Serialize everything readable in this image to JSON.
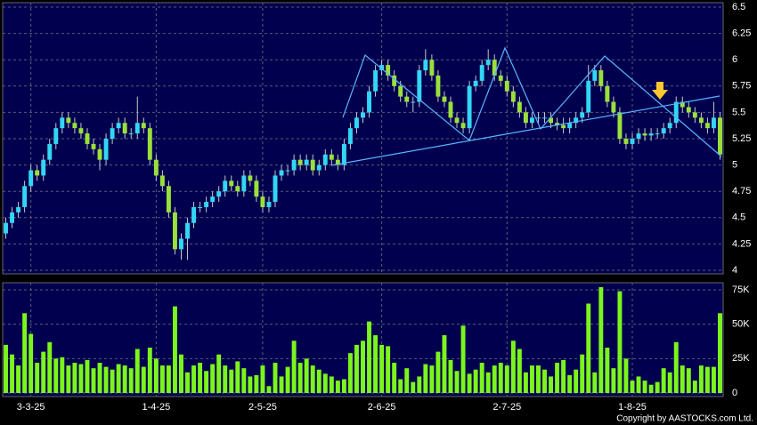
{
  "chart_data": {
    "type": "candlestick",
    "categories": [
      null,
      null,
      null,
      null,
      "3-3-25",
      null,
      null,
      null,
      null,
      null,
      null,
      null,
      null,
      null,
      null,
      null,
      null,
      null,
      null,
      null,
      null,
      null,
      null,
      null,
      "1-4-25",
      null,
      null,
      null,
      null,
      null,
      null,
      null,
      null,
      null,
      null,
      null,
      null,
      null,
      null,
      null,
      null,
      "2-5-25",
      null,
      null,
      null,
      null,
      null,
      null,
      null,
      null,
      null,
      null,
      null,
      null,
      null,
      null,
      null,
      null,
      null,
      null,
      "2-6-25",
      null,
      null,
      null,
      null,
      null,
      null,
      null,
      null,
      null,
      null,
      null,
      null,
      null,
      null,
      null,
      null,
      null,
      null,
      null,
      "2-7-25",
      null,
      null,
      null,
      null,
      null,
      null,
      null,
      null,
      null,
      null,
      null,
      null,
      null,
      null,
      null,
      null,
      null,
      null,
      null,
      "1-8-25",
      null,
      null,
      null,
      null,
      null,
      null,
      null,
      null,
      null,
      null,
      null,
      null,
      null,
      null
    ],
    "open": [
      4.35,
      4.45,
      4.55,
      4.6,
      4.8,
      4.95,
      4.9,
      5.05,
      5.2,
      5.35,
      5.45,
      5.4,
      5.35,
      5.3,
      5.2,
      5.15,
      5.05,
      5.25,
      5.35,
      5.4,
      5.3,
      5.3,
      5.4,
      5.35,
      5.05,
      4.9,
      4.8,
      4.55,
      4.2,
      4.3,
      4.45,
      4.6,
      4.6,
      4.65,
      4.7,
      4.75,
      4.85,
      4.8,
      4.75,
      4.9,
      4.85,
      4.7,
      4.6,
      4.65,
      4.9,
      4.95,
      4.95,
      5.05,
      5.0,
      5.05,
      4.95,
      5.0,
      5.1,
      5.05,
      5.0,
      5.2,
      5.35,
      5.45,
      5.5,
      5.7,
      5.9,
      5.95,
      5.85,
      5.75,
      5.65,
      5.6,
      5.6,
      5.9,
      6.0,
      5.85,
      5.65,
      5.6,
      5.45,
      5.4,
      5.35,
      5.75,
      5.8,
      5.95,
      6.0,
      5.85,
      5.8,
      5.7,
      5.6,
      5.5,
      5.4,
      5.45,
      5.45,
      5.45,
      5.4,
      5.38,
      5.35,
      5.4,
      5.45,
      5.5,
      5.8,
      5.9,
      5.75,
      5.6,
      5.5,
      5.25,
      5.2,
      5.25,
      5.3,
      5.28,
      5.3,
      5.3,
      5.35,
      5.4,
      5.6,
      5.55,
      5.5,
      5.45,
      5.4,
      5.35,
      5.45
    ],
    "high": [
      4.5,
      4.6,
      4.65,
      4.85,
      5.0,
      5.0,
      5.1,
      5.25,
      5.4,
      5.5,
      5.5,
      5.45,
      5.4,
      5.35,
      5.25,
      5.2,
      5.3,
      5.4,
      5.45,
      5.45,
      5.35,
      5.65,
      5.45,
      5.4,
      5.1,
      4.95,
      4.85,
      4.6,
      4.35,
      4.5,
      4.65,
      4.65,
      4.7,
      4.75,
      4.8,
      4.9,
      4.9,
      4.85,
      4.95,
      4.95,
      4.9,
      4.75,
      4.7,
      4.95,
      5.0,
      5.0,
      5.1,
      5.1,
      5.1,
      5.1,
      5.05,
      5.15,
      5.15,
      5.1,
      5.25,
      5.4,
      5.5,
      5.55,
      5.75,
      5.95,
      6.0,
      6.0,
      5.9,
      5.8,
      5.7,
      5.65,
      5.95,
      6.1,
      6.05,
      5.9,
      5.7,
      5.65,
      5.5,
      5.45,
      5.8,
      5.85,
      6.0,
      6.1,
      6.05,
      5.9,
      5.85,
      5.75,
      5.65,
      5.55,
      5.5,
      5.5,
      5.5,
      5.5,
      5.45,
      5.45,
      5.45,
      5.5,
      5.55,
      5.95,
      5.95,
      5.95,
      5.8,
      5.65,
      5.55,
      5.3,
      5.3,
      5.35,
      5.35,
      5.35,
      5.35,
      5.4,
      5.45,
      5.65,
      5.65,
      5.6,
      5.55,
      5.5,
      5.45,
      5.6,
      5.5
    ],
    "low": [
      4.3,
      4.4,
      4.5,
      4.55,
      4.75,
      4.85,
      4.85,
      5.0,
      5.15,
      5.3,
      5.35,
      5.3,
      5.25,
      5.15,
      5.1,
      4.95,
      5.0,
      5.2,
      5.3,
      5.25,
      5.25,
      5.25,
      5.3,
      5.0,
      4.85,
      4.75,
      4.5,
      4.15,
      4.1,
      4.1,
      4.4,
      4.55,
      4.55,
      4.6,
      4.65,
      4.7,
      4.75,
      4.7,
      4.7,
      4.8,
      4.65,
      4.55,
      4.55,
      4.6,
      4.85,
      4.9,
      4.9,
      4.95,
      4.95,
      4.9,
      4.9,
      4.95,
      5.0,
      4.95,
      4.95,
      5.15,
      5.3,
      5.4,
      5.45,
      5.65,
      5.85,
      5.8,
      5.7,
      5.6,
      5.55,
      5.5,
      5.55,
      5.85,
      5.8,
      5.6,
      5.55,
      5.4,
      5.35,
      5.3,
      5.3,
      5.7,
      5.75,
      5.9,
      5.8,
      5.75,
      5.65,
      5.55,
      5.45,
      5.35,
      5.35,
      5.4,
      5.4,
      5.35,
      5.33,
      5.3,
      5.3,
      5.35,
      5.4,
      5.45,
      5.75,
      5.7,
      5.55,
      5.45,
      5.2,
      5.15,
      5.15,
      5.2,
      5.23,
      5.23,
      5.25,
      5.25,
      5.3,
      5.35,
      5.5,
      5.45,
      5.4,
      5.35,
      5.3,
      5.3,
      5.05
    ],
    "close": [
      4.45,
      4.55,
      4.6,
      4.8,
      4.95,
      4.9,
      5.05,
      5.2,
      5.35,
      5.45,
      5.4,
      5.35,
      5.3,
      5.2,
      5.15,
      5.05,
      5.25,
      5.35,
      5.4,
      5.3,
      5.3,
      5.4,
      5.35,
      5.05,
      4.9,
      4.8,
      4.55,
      4.2,
      4.3,
      4.45,
      4.6,
      4.6,
      4.65,
      4.7,
      4.75,
      4.85,
      4.8,
      4.75,
      4.9,
      4.85,
      4.7,
      4.6,
      4.65,
      4.9,
      4.95,
      4.95,
      5.05,
      5.0,
      5.05,
      4.95,
      5.0,
      5.1,
      5.05,
      5.0,
      5.2,
      5.35,
      5.45,
      5.5,
      5.7,
      5.9,
      5.95,
      5.85,
      5.75,
      5.65,
      5.6,
      5.6,
      5.9,
      6.0,
      5.85,
      5.65,
      5.6,
      5.45,
      5.4,
      5.35,
      5.75,
      5.8,
      5.95,
      6.0,
      5.85,
      5.8,
      5.7,
      5.6,
      5.5,
      5.4,
      5.45,
      5.45,
      5.45,
      5.4,
      5.38,
      5.35,
      5.4,
      5.45,
      5.5,
      5.8,
      5.9,
      5.75,
      5.6,
      5.5,
      5.25,
      5.2,
      5.25,
      5.3,
      5.28,
      5.3,
      5.3,
      5.35,
      5.4,
      5.6,
      5.55,
      5.5,
      5.45,
      5.4,
      5.35,
      5.45,
      5.1
    ],
    "volume": [
      35000,
      28000,
      20000,
      58000,
      43000,
      22000,
      30000,
      37000,
      25000,
      26000,
      20000,
      22000,
      21000,
      24000,
      18000,
      22000,
      19000,
      17000,
      21000,
      20000,
      18000,
      32000,
      19000,
      33000,
      25000,
      20000,
      20000,
      63000,
      28000,
      15000,
      20000,
      22000,
      16000,
      21000,
      28000,
      20000,
      17000,
      23000,
      18000,
      12000,
      13000,
      20000,
      5000,
      22000,
      12000,
      19000,
      38000,
      22000,
      25000,
      20000,
      17000,
      14000,
      12000,
      9000,
      10000,
      29000,
      35000,
      38000,
      52000,
      42000,
      35000,
      34000,
      22000,
      10000,
      18000,
      8000,
      12000,
      21000,
      20000,
      30000,
      42000,
      24000,
      16000,
      49000,
      14000,
      17000,
      22000,
      15000,
      20000,
      22000,
      20000,
      38000,
      32000,
      15000,
      20000,
      20000,
      17000,
      12000,
      22000,
      24000,
      13000,
      17000,
      28000,
      65000,
      15000,
      77000,
      33000,
      18000,
      74000,
      25000,
      9000,
      12000,
      9000,
      6000,
      8000,
      18000,
      15000,
      37000,
      20000,
      18000,
      9000,
      20000,
      19000,
      19000,
      58000
    ],
    "up_color": "#33d6f5",
    "down_color": "#9be03a",
    "volume_color": "#7cf51c",
    "ylim": [
      4,
      6.5
    ],
    "yticks": [
      4,
      4.25,
      4.5,
      4.75,
      5,
      5.25,
      5.5,
      5.75,
      6,
      6.25,
      6.5
    ],
    "y2lim": [
      0,
      75000
    ],
    "y2ticks": [
      0,
      {
        "value": 25000,
        "label": "25K"
      },
      {
        "value": 50000,
        "label": "50K"
      },
      {
        "value": 75000,
        "label": "75K"
      }
    ],
    "grid": true,
    "copyright": "Copyright by AASTOCKS.com Ltd."
  }
}
